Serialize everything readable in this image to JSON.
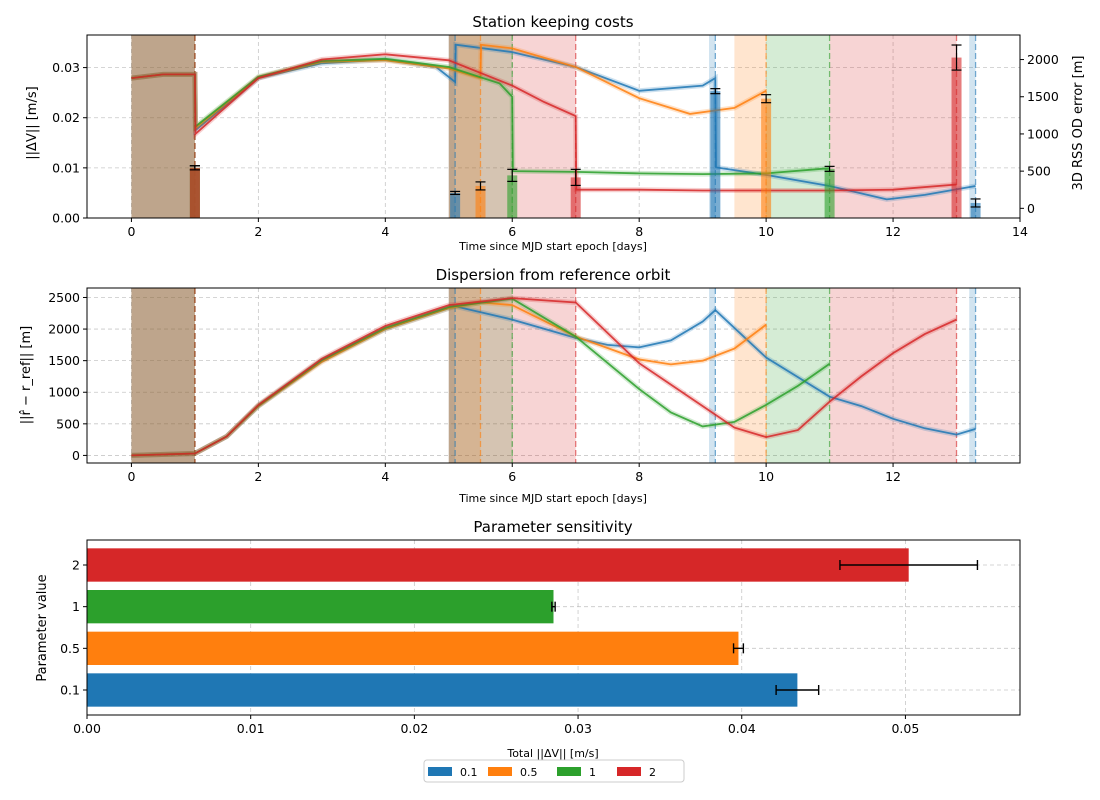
{
  "colors": {
    "0.1": "#1f77b4",
    "0.5": "#ff7f0e",
    "1": "#2ca02c",
    "2": "#d62728"
  },
  "legend": {
    "entries": [
      {
        "label": "0.1",
        "color": "#1f77b4"
      },
      {
        "label": "0.5",
        "color": "#ff7f0e"
      },
      {
        "label": "1",
        "color": "#2ca02c"
      },
      {
        "label": "2",
        "color": "#d62728"
      }
    ],
    "placement": "bottom-center"
  },
  "chart_data": [
    {
      "type": "line",
      "title": "Station keeping costs",
      "xlabel": "Time since MJD start epoch [days]",
      "ylabel": "||ΔV|| [m/s]",
      "y2label": "3D RSS OD error [m]",
      "xlim": [
        -0.7,
        14.0
      ],
      "ylim": [
        0,
        0.0365
      ],
      "y2lim": [
        -130,
        2330
      ],
      "xticks": [
        "0",
        "2",
        "4",
        "6",
        "8",
        "10",
        "12",
        "14"
      ],
      "xtick_values": [
        0,
        2,
        4,
        6,
        8,
        10,
        12,
        14
      ],
      "yticks": [
        "0.00",
        "0.01",
        "0.02",
        "0.03"
      ],
      "ytick_values": [
        0,
        0.01,
        0.02,
        0.03
      ],
      "y2ticks": [
        "0",
        "500",
        "1000",
        "1500",
        "2000"
      ],
      "y2tick_values": [
        0,
        500,
        1000,
        1500,
        2000
      ],
      "grid": true,
      "spans": [
        {
          "series": "0.1",
          "start": 0,
          "end": 1
        },
        {
          "series": "0.5",
          "start": 0,
          "end": 1
        },
        {
          "series": "1",
          "start": 0,
          "end": 1
        },
        {
          "series": "2",
          "start": 0,
          "end": 1
        },
        {
          "series": "0.1",
          "start": 5.0,
          "end": 5.1
        },
        {
          "series": "0.5",
          "start": 5.0,
          "end": 5.5
        },
        {
          "series": "1",
          "start": 5.0,
          "end": 6.0
        },
        {
          "series": "2",
          "start": 5.0,
          "end": 7.0
        },
        {
          "series": "0.1",
          "start": 9.1,
          "end": 9.2
        },
        {
          "series": "0.5",
          "start": 9.5,
          "end": 10.0
        },
        {
          "series": "1",
          "start": 10.0,
          "end": 11.0
        },
        {
          "series": "2",
          "start": 11.0,
          "end": 13.0
        },
        {
          "series": "0.1",
          "start": 13.2,
          "end": 13.3
        }
      ],
      "vlines": [
        {
          "series": "0.1",
          "x": 1.0
        },
        {
          "series": "0.1",
          "x": 5.1
        },
        {
          "series": "0.1",
          "x": 9.2
        },
        {
          "series": "0.1",
          "x": 13.3
        },
        {
          "series": "0.5",
          "x": 1.0
        },
        {
          "series": "0.5",
          "x": 5.5
        },
        {
          "series": "0.5",
          "x": 10.0
        },
        {
          "series": "1",
          "x": 1.0
        },
        {
          "series": "1",
          "x": 6.0
        },
        {
          "series": "1",
          "x": 11.0
        },
        {
          "series": "2",
          "x": 1.0
        },
        {
          "series": "2",
          "x": 7.0
        },
        {
          "series": "2",
          "x": 13.0
        }
      ],
      "bars": [
        {
          "series": "0.1",
          "x": 1.0,
          "value": 0.01,
          "err": 0.0004
        },
        {
          "series": "0.1",
          "x": 5.1,
          "value": 0.005,
          "err": 0.0003
        },
        {
          "series": "0.1",
          "x": 9.2,
          "value": 0.0253,
          "err": 0.0005
        },
        {
          "series": "0.1",
          "x": 13.3,
          "value": 0.003,
          "err": 0.0008
        },
        {
          "series": "0.5",
          "x": 1.0,
          "value": 0.01,
          "err": 0.0004
        },
        {
          "series": "0.5",
          "x": 5.5,
          "value": 0.0064,
          "err": 0.0008
        },
        {
          "series": "0.5",
          "x": 10.0,
          "value": 0.0238,
          "err": 0.0008
        },
        {
          "series": "1",
          "x": 1.0,
          "value": 0.01,
          "err": 0.0004
        },
        {
          "series": "1",
          "x": 6.0,
          "value": 0.0085,
          "err": 0.0012
        },
        {
          "series": "1",
          "x": 11.0,
          "value": 0.0098,
          "err": 0.0005
        },
        {
          "series": "2",
          "x": 1.0,
          "value": 0.01,
          "err": 0.0004
        },
        {
          "series": "2",
          "x": 7.0,
          "value": 0.0081,
          "err": 0.0016
        },
        {
          "series": "2",
          "x": 13.0,
          "value": 0.032,
          "err": 0.0025
        }
      ],
      "od_error_series": [
        {
          "name": "0.1",
          "points": [
            [
              0,
              1750
            ],
            [
              0.5,
              1800
            ],
            [
              1,
              1800
            ],
            [
              1.01,
              1050
            ],
            [
              2,
              1750
            ],
            [
              3,
              1950
            ],
            [
              4,
              2000
            ],
            [
              4.8,
              1900
            ],
            [
              5.1,
              1700
            ],
            [
              5.11,
              2200
            ],
            [
              6,
              2100
            ],
            [
              7,
              1900
            ],
            [
              8,
              1580
            ],
            [
              9,
              1650
            ],
            [
              9.2,
              1750
            ],
            [
              9.21,
              550
            ],
            [
              10,
              450
            ],
            [
              11,
              300
            ],
            [
              11.9,
              120
            ],
            [
              12.5,
              180
            ],
            [
              13.3,
              300
            ]
          ]
        },
        {
          "name": "0.5",
          "points": [
            [
              0,
              1750
            ],
            [
              0.5,
              1800
            ],
            [
              1,
              1800
            ],
            [
              1.01,
              1080
            ],
            [
              2,
              1760
            ],
            [
              3,
              1970
            ],
            [
              4,
              1990
            ],
            [
              5,
              1880
            ],
            [
              5.5,
              1750
            ],
            [
              5.51,
              2200
            ],
            [
              6,
              2150
            ],
            [
              7,
              1900
            ],
            [
              8,
              1480
            ],
            [
              8.8,
              1270
            ],
            [
              9.5,
              1350
            ],
            [
              10,
              1580
            ]
          ]
        },
        {
          "name": "1",
          "points": [
            [
              0,
              1750
            ],
            [
              0.5,
              1800
            ],
            [
              1,
              1800
            ],
            [
              1.01,
              1100
            ],
            [
              2,
              1770
            ],
            [
              3,
              1980
            ],
            [
              4,
              2010
            ],
            [
              5,
              1900
            ],
            [
              5.8,
              1680
            ],
            [
              6,
              1500
            ],
            [
              6.01,
              500
            ],
            [
              7,
              490
            ],
            [
              8,
              470
            ],
            [
              9,
              460
            ],
            [
              10,
              470
            ],
            [
              11,
              540
            ]
          ]
        },
        {
          "name": "2",
          "points": [
            [
              0,
              1750
            ],
            [
              0.5,
              1800
            ],
            [
              1,
              1800
            ],
            [
              1.01,
              1000
            ],
            [
              2,
              1750
            ],
            [
              3,
              2000
            ],
            [
              4,
              2070
            ],
            [
              5,
              1990
            ],
            [
              6,
              1650
            ],
            [
              6.5,
              1430
            ],
            [
              7,
              1240
            ],
            [
              7.01,
              250
            ],
            [
              8,
              250
            ],
            [
              9,
              240
            ],
            [
              10,
              240
            ],
            [
              11,
              240
            ],
            [
              12,
              250
            ],
            [
              13,
              320
            ]
          ]
        }
      ]
    },
    {
      "type": "line",
      "title": "Dispersion from reference orbit",
      "xlabel": "Time since MJD start epoch [days]",
      "ylabel": "||r̂ − r_ref|| [m]",
      "xlim": [
        -0.7,
        14.0
      ],
      "ylim": [
        -120,
        2650
      ],
      "xticks": [
        "0",
        "2",
        "4",
        "6",
        "8",
        "10",
        "12"
      ],
      "xtick_values": [
        0,
        2,
        4,
        6,
        8,
        10,
        12
      ],
      "yticks": [
        "0",
        "500",
        "1000",
        "1500",
        "2000",
        "2500"
      ],
      "ytick_values": [
        0,
        500,
        1000,
        1500,
        2000,
        2500
      ],
      "grid": true,
      "series": [
        {
          "name": "0.1",
          "points": [
            [
              0,
              0
            ],
            [
              1,
              30
            ],
            [
              1.5,
              300
            ],
            [
              2,
              780
            ],
            [
              3,
              1500
            ],
            [
              4,
              2000
            ],
            [
              5,
              2330
            ],
            [
              5.1,
              2360
            ],
            [
              6,
              2150
            ],
            [
              7,
              1860
            ],
            [
              7.5,
              1750
            ],
            [
              8,
              1710
            ],
            [
              8.5,
              1820
            ],
            [
              9,
              2120
            ],
            [
              9.2,
              2300
            ],
            [
              10,
              1550
            ],
            [
              11,
              930
            ],
            [
              11.5,
              780
            ],
            [
              12,
              580
            ],
            [
              12.5,
              430
            ],
            [
              13,
              330
            ],
            [
              13.3,
              420
            ]
          ]
        },
        {
          "name": "0.5",
          "points": [
            [
              0,
              0
            ],
            [
              1,
              30
            ],
            [
              1.5,
              300
            ],
            [
              2,
              780
            ],
            [
              3,
              1480
            ],
            [
              4,
              2000
            ],
            [
              5,
              2330
            ],
            [
              5.5,
              2420
            ],
            [
              6,
              2380
            ],
            [
              7,
              1880
            ],
            [
              8,
              1520
            ],
            [
              8.5,
              1440
            ],
            [
              9,
              1500
            ],
            [
              9.5,
              1690
            ],
            [
              10,
              2070
            ]
          ]
        },
        {
          "name": "1",
          "points": [
            [
              0,
              0
            ],
            [
              1,
              30
            ],
            [
              1.5,
              300
            ],
            [
              2,
              790
            ],
            [
              3,
              1510
            ],
            [
              4,
              2020
            ],
            [
              5,
              2350
            ],
            [
              6,
              2480
            ],
            [
              7,
              1880
            ],
            [
              8,
              1050
            ],
            [
              8.5,
              680
            ],
            [
              9,
              460
            ],
            [
              9.5,
              530
            ],
            [
              10,
              800
            ],
            [
              10.5,
              1100
            ],
            [
              11,
              1450
            ]
          ]
        },
        {
          "name": "2",
          "points": [
            [
              0,
              0
            ],
            [
              1,
              30
            ],
            [
              1.5,
              300
            ],
            [
              2,
              800
            ],
            [
              3,
              1530
            ],
            [
              4,
              2050
            ],
            [
              5,
              2380
            ],
            [
              6,
              2490
            ],
            [
              7,
              2420
            ],
            [
              8,
              1460
            ],
            [
              9,
              780
            ],
            [
              9.5,
              440
            ],
            [
              10,
              290
            ],
            [
              10.5,
              400
            ],
            [
              11,
              850
            ],
            [
              11.5,
              1250
            ],
            [
              12,
              1620
            ],
            [
              12.5,
              1920
            ],
            [
              13,
              2150
            ]
          ]
        }
      ],
      "spans": [
        {
          "series": "0.1",
          "start": 0,
          "end": 1
        },
        {
          "series": "0.5",
          "start": 0,
          "end": 1
        },
        {
          "series": "1",
          "start": 0,
          "end": 1
        },
        {
          "series": "2",
          "start": 0,
          "end": 1
        },
        {
          "series": "0.1",
          "start": 5.0,
          "end": 5.1
        },
        {
          "series": "0.5",
          "start": 5.0,
          "end": 5.5
        },
        {
          "series": "1",
          "start": 5.0,
          "end": 6.0
        },
        {
          "series": "2",
          "start": 5.0,
          "end": 7.0
        },
        {
          "series": "0.1",
          "start": 9.1,
          "end": 9.2
        },
        {
          "series": "0.5",
          "start": 9.5,
          "end": 10.0
        },
        {
          "series": "1",
          "start": 10.0,
          "end": 11.0
        },
        {
          "series": "2",
          "start": 11.0,
          "end": 13.0
        },
        {
          "series": "0.1",
          "start": 13.2,
          "end": 13.3
        }
      ],
      "vlines": [
        {
          "series": "0.1",
          "x": 1.0
        },
        {
          "series": "0.1",
          "x": 5.1
        },
        {
          "series": "0.1",
          "x": 9.2
        },
        {
          "series": "0.1",
          "x": 13.3
        },
        {
          "series": "0.5",
          "x": 1.0
        },
        {
          "series": "0.5",
          "x": 5.5
        },
        {
          "series": "0.5",
          "x": 10.0
        },
        {
          "series": "1",
          "x": 1.0
        },
        {
          "series": "1",
          "x": 6.0
        },
        {
          "series": "1",
          "x": 11.0
        },
        {
          "series": "2",
          "x": 1.0
        },
        {
          "series": "2",
          "x": 7.0
        },
        {
          "series": "2",
          "x": 13.0
        }
      ]
    },
    {
      "type": "bar",
      "orientation": "horizontal",
      "title": "Parameter sensitivity",
      "xlabel": "Total ||ΔV|| [m/s]",
      "ylabel": "Parameter value",
      "xlim": [
        0,
        0.057
      ],
      "xticks": [
        "0.00",
        "0.01",
        "0.02",
        "0.03",
        "0.04",
        "0.05"
      ],
      "xtick_values": [
        0,
        0.01,
        0.02,
        0.03,
        0.04,
        0.05
      ],
      "categories": [
        "0.1",
        "0.5",
        "1",
        "2"
      ],
      "values": [
        0.0434,
        0.0398,
        0.0285,
        0.0502
      ],
      "errors": [
        0.0013,
        0.0003,
        0.0001,
        0.0042
      ],
      "grid": true
    }
  ]
}
